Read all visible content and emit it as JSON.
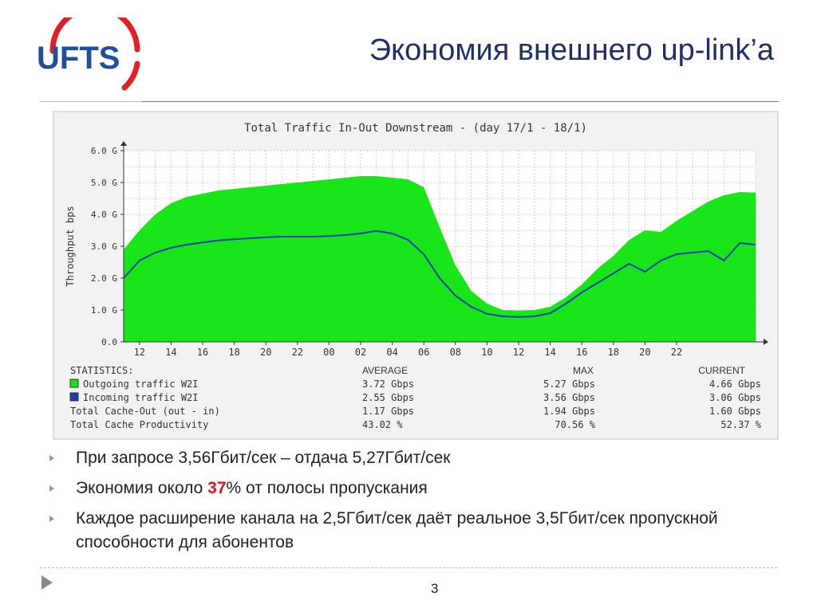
{
  "logo": {
    "text": "UFTS",
    "text_color": "#1f4e9b",
    "arc_color": "#e31e24"
  },
  "title": "Экономия внешнего up-link’а",
  "chart_data": {
    "type": "area",
    "title": "Total Traffic In-Out Downstream - (day 17/1 - 18/1)",
    "ylabel": "Throughput bps",
    "ylim": [
      0,
      6
    ],
    "yticks": [
      "0.0",
      "1.0 G",
      "2.0 G",
      "3.0 G",
      "4.0 G",
      "5.0 G",
      "6.0 G"
    ],
    "xticks": [
      "12",
      "14",
      "16",
      "18",
      "20",
      "22",
      "00",
      "02",
      "04",
      "06",
      "08",
      "10",
      "12",
      "14",
      "16",
      "18",
      "20",
      "22"
    ],
    "x_hours": [
      0,
      1,
      2,
      3,
      4,
      5,
      6,
      7,
      8,
      9,
      10,
      11,
      12,
      13,
      14,
      15,
      16,
      17,
      18,
      19,
      20,
      21,
      22,
      23,
      24,
      25,
      26,
      27,
      28,
      29,
      30,
      31,
      32,
      33,
      34,
      35,
      36,
      37,
      38,
      39,
      40
    ],
    "grid": true,
    "series": [
      {
        "name": "Outgoing traffic W2I",
        "color": "#19e619",
        "values": [
          2.9,
          3.5,
          4.0,
          4.35,
          4.55,
          4.65,
          4.75,
          4.8,
          4.85,
          4.9,
          4.95,
          5.0,
          5.05,
          5.1,
          5.15,
          5.2,
          5.2,
          5.15,
          5.1,
          4.85,
          3.6,
          2.4,
          1.6,
          1.2,
          1.0,
          0.98,
          1.0,
          1.1,
          1.4,
          1.8,
          2.3,
          2.7,
          3.2,
          3.5,
          3.45,
          3.8,
          4.1,
          4.4,
          4.6,
          4.7,
          4.68
        ]
      },
      {
        "name": "Incoming traffic W2I",
        "color": "#1a3fb0",
        "values": [
          2.0,
          2.55,
          2.8,
          2.95,
          3.05,
          3.12,
          3.18,
          3.22,
          3.25,
          3.28,
          3.3,
          3.3,
          3.3,
          3.32,
          3.35,
          3.4,
          3.48,
          3.4,
          3.2,
          2.75,
          2.0,
          1.45,
          1.1,
          0.88,
          0.8,
          0.78,
          0.8,
          0.9,
          1.2,
          1.55,
          1.85,
          2.15,
          2.45,
          2.2,
          2.55,
          2.75,
          2.8,
          2.85,
          2.55,
          3.1,
          3.05
        ]
      }
    ],
    "stats": {
      "header": [
        "STATISTICS:",
        "AVERAGE",
        "MAX",
        "CURRENT"
      ],
      "rows": [
        [
          "Outgoing traffic W2I",
          "3.72 Gbps",
          "5.27 Gbps",
          "4.66 Gbps"
        ],
        [
          "Incoming traffic W2I",
          "2.55 Gbps",
          "3.56 Gbps",
          "3.06 Gbps"
        ],
        [
          "Total Cache-Out (out - in)",
          "1.17 Gbps",
          "1.94 Gbps",
          "1.60 Gbps"
        ],
        [
          "Total Cache Productivity",
          "43.02 %",
          "70.56 %",
          "52.37 %"
        ]
      ]
    }
  },
  "bullets": [
    {
      "text": "При запросе 3,56Гбит/сек – отдача 5,27Гбит/сек"
    },
    {
      "pre": "Экономия около ",
      "highlight": "37",
      "post": "% от полосы пропускания"
    },
    {
      "text": "Каждое расширение канала на 2,5Гбит/сек даёт реальное 3,5Гбит/сек пропускной способности для абонентов"
    }
  ],
  "page_number": "3"
}
